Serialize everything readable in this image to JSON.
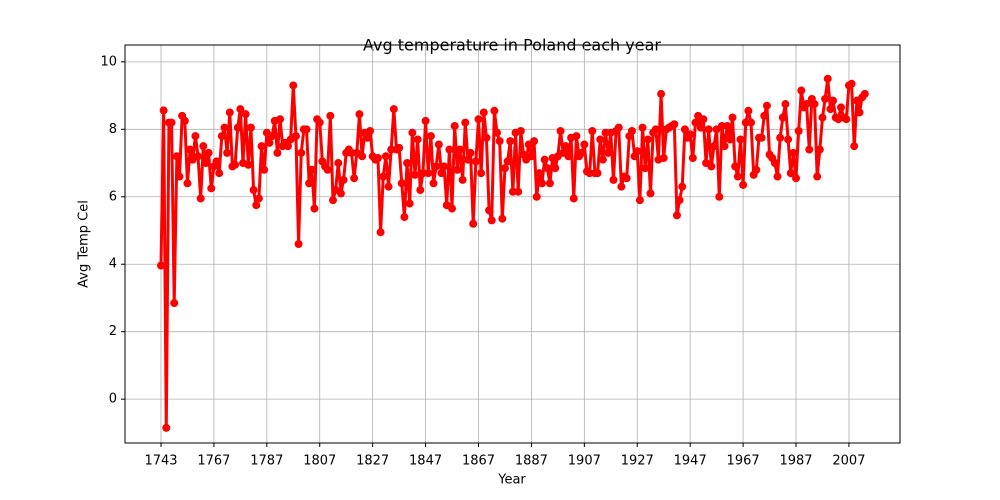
{
  "chart_data": {
    "type": "line",
    "title": "Avg temperature in Poland each year",
    "x_label": "Year",
    "y_label": "Avg Temp Cel",
    "color": "#ff0000",
    "grid": true,
    "xlim": [
      -13.6,
      279.3
    ],
    "xticks": [
      {
        "value": 0,
        "label": "1743"
      },
      {
        "value": 20,
        "label": "1767"
      },
      {
        "value": 40,
        "label": "1787"
      },
      {
        "value": 60,
        "label": "1807"
      },
      {
        "value": 80,
        "label": "1827"
      },
      {
        "value": 100,
        "label": "1847"
      },
      {
        "value": 120,
        "label": "1867"
      },
      {
        "value": 140,
        "label": "1887"
      },
      {
        "value": 160,
        "label": "1907"
      },
      {
        "value": 180,
        "label": "1927"
      },
      {
        "value": 200,
        "label": "1947"
      },
      {
        "value": 220,
        "label": "1967"
      },
      {
        "value": 240,
        "label": "1987"
      },
      {
        "value": 260,
        "label": "2007"
      }
    ],
    "ylim": [
      -1.3,
      10.5
    ],
    "yticks": [
      0,
      2,
      4,
      6,
      8,
      10
    ],
    "values": [
      3.96,
      8.56,
      -0.85,
      8.2,
      8.2,
      2.85,
      7.2,
      6.6,
      8.4,
      8.25,
      6.4,
      7.4,
      7.1,
      7.8,
      7.2,
      5.95,
      7.5,
      7.0,
      7.3,
      6.25,
      6.9,
      7.05,
      6.7,
      7.8,
      8.05,
      7.3,
      8.5,
      6.9,
      6.95,
      8.05,
      8.6,
      7.0,
      8.45,
      6.95,
      8.05,
      6.2,
      5.75,
      5.95,
      7.5,
      6.8,
      7.9,
      7.6,
      7.8,
      8.25,
      7.3,
      8.3,
      7.5,
      7.6,
      7.5,
      7.7,
      9.3,
      7.8,
      4.6,
      7.3,
      8.0,
      8.0,
      6.4,
      6.8,
      5.65,
      8.3,
      8.2,
      7.05,
      6.9,
      6.8,
      8.4,
      5.9,
      6.2,
      7.0,
      6.1,
      6.5,
      7.3,
      7.4,
      7.3,
      6.55,
      7.3,
      8.45,
      7.2,
      7.9,
      7.75,
      7.95,
      7.2,
      7.1,
      7.15,
      4.95,
      6.6,
      7.2,
      6.3,
      7.4,
      8.6,
      7.4,
      7.45,
      6.4,
      5.4,
      7.0,
      5.8,
      7.9,
      6.65,
      7.7,
      6.2,
      6.7,
      8.25,
      6.7,
      7.8,
      6.4,
      6.9,
      7.55,
      6.7,
      6.9,
      5.75,
      7.4,
      5.65,
      8.1,
      6.8,
      7.4,
      6.5,
      8.2,
      7.1,
      7.3,
      5.2,
      7.05,
      8.3,
      6.7,
      8.5,
      7.75,
      5.6,
      5.3,
      8.55,
      7.9,
      7.65,
      5.35,
      6.85,
      7.05,
      7.65,
      6.15,
      7.9,
      6.15,
      7.95,
      7.25,
      7.1,
      7.55,
      7.2,
      7.65,
      6.0,
      6.7,
      6.4,
      7.1,
      6.85,
      6.4,
      7.15,
      6.85,
      7.2,
      7.95,
      7.3,
      7.5,
      7.2,
      7.75,
      5.95,
      7.8,
      7.2,
      7.3,
      7.55,
      6.75,
      6.7,
      7.95,
      6.7,
      6.7,
      7.7,
      7.1,
      7.9,
      7.3,
      7.9,
      6.5,
      7.95,
      8.05,
      6.3,
      6.6,
      6.55,
      7.8,
      7.95,
      7.2,
      7.35,
      5.9,
      8.05,
      6.85,
      7.7,
      6.1,
      7.9,
      8.0,
      7.1,
      9.05,
      7.15,
      8.0,
      8.05,
      8.1,
      8.15,
      5.45,
      5.9,
      6.3,
      8.0,
      7.75,
      7.85,
      7.15,
      8.2,
      8.4,
      8.05,
      8.3,
      7.0,
      8.0,
      6.9,
      7.5,
      8.0,
      6.0,
      8.1,
      7.5,
      8.1,
      7.7,
      8.35,
      6.9,
      6.6,
      7.7,
      6.35,
      8.2,
      8.55,
      8.2,
      6.65,
      6.8,
      7.75,
      7.75,
      8.4,
      8.7,
      7.25,
      7.15,
      7.0,
      6.6,
      7.75,
      8.35,
      8.75,
      7.7,
      6.7,
      7.3,
      6.55,
      7.95,
      9.15,
      8.65,
      8.75,
      7.4,
      8.9,
      8.75,
      6.6,
      7.4,
      8.35,
      8.9,
      9.5,
      8.6,
      8.85,
      8.35,
      8.3,
      8.65,
      8.35,
      8.3,
      9.3,
      9.35,
      7.5,
      8.85,
      8.5,
      8.95,
      9.05
    ]
  }
}
